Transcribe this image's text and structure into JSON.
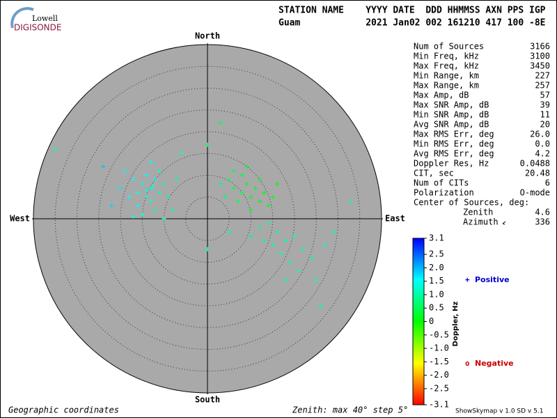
{
  "logo": {
    "top": "Lowell",
    "bottom": "DIGISONDE"
  },
  "header": {
    "row1": "STATION NAME    YYYY DATE  DDD HHMMSS AXN PPS IGP",
    "row2": "Guam            2021 Jan02 002 161210 417 100 -8E"
  },
  "stats": {
    "rows": [
      [
        "Num of Sources",
        3166
      ],
      [
        "Min Freq, kHz",
        3100
      ],
      [
        "Max Freq, kHz",
        3450
      ],
      [
        "Min Range, km",
        227
      ],
      [
        "Max Range, km",
        257
      ],
      [
        "Max Amp, dB",
        57
      ],
      [
        "Max SNR Amp, dB",
        39
      ],
      [
        "Min SNR Amp, dB",
        11
      ],
      [
        "Avg SNR Amp, dB",
        20
      ],
      [
        "Max RMS Err, deg",
        "26.0"
      ],
      [
        "Min RMS Err, deg",
        "0.0"
      ],
      [
        "Avg RMS Err, deg",
        4.2
      ],
      [
        "Doppler Res, Hz",
        0.0488
      ],
      [
        "CIT, sec",
        20.48
      ],
      [
        "Num of CITs",
        6
      ],
      [
        "Polarization",
        "O-mode"
      ]
    ],
    "center_title": "Center of Sources, deg:",
    "center_rows": [
      [
        "Zenith",
        4.6
      ],
      [
        "Azimuth",
        336
      ]
    ]
  },
  "chart_data": {
    "type": "skymap",
    "directions": {
      "north": "North",
      "south": "South",
      "east": "East",
      "west": "West"
    },
    "rlim": [
      0,
      40
    ],
    "rticks": [
      5,
      10,
      15,
      20,
      25,
      30,
      35,
      40
    ],
    "x": [
      -13,
      -15,
      -11,
      -14,
      -12,
      -16,
      -10,
      -17,
      -13,
      -18,
      -9,
      -14,
      -12,
      -16,
      -20,
      -11,
      -8,
      -19,
      -15,
      -22,
      -7,
      -13,
      -24,
      -10,
      -17,
      -6,
      -14,
      -12.5,
      8,
      10,
      6,
      9,
      12,
      7,
      11,
      5,
      13,
      8,
      14,
      10,
      4,
      6,
      12,
      15,
      9,
      3,
      16,
      14,
      16,
      12,
      18,
      15,
      20,
      17,
      22,
      19,
      24,
      13,
      21,
      25,
      18,
      10,
      27,
      5,
      0,
      3,
      0,
      -35,
      33,
      29,
      26
    ],
    "y": [
      7,
      8,
      6,
      5,
      9,
      6,
      8,
      9,
      4,
      5,
      5,
      10,
      2,
      3,
      7,
      11,
      2,
      11,
      1,
      3,
      9,
      13,
      12,
      0,
      0.5,
      15,
      6.5,
      7.5,
      6,
      5,
      7,
      8,
      4,
      4,
      7,
      9,
      6,
      10,
      3,
      2,
      5,
      11,
      9,
      5,
      12,
      8,
      8,
      -1,
      -3,
      -2,
      -5,
      -6,
      -4,
      -8,
      -7,
      -10,
      -9,
      -5,
      -12,
      -14,
      -14,
      -4,
      -6,
      -3,
      -7,
      22,
      17,
      16,
      4,
      -3,
      -20
    ],
    "doppler": [
      1.3,
      1.4,
      1.2,
      1.3,
      1.5,
      1.4,
      1.1,
      1.6,
      1.2,
      1.5,
      1.0,
      1.5,
      1.2,
      1.4,
      1.7,
      1.3,
      1.1,
      1.6,
      1.3,
      1.8,
      1.0,
      1.4,
      1.9,
      1.2,
      1.5,
      1.2,
      1.3,
      1.3,
      0.3,
      0.2,
      0.4,
      0.3,
      0.1,
      0.5,
      0.2,
      0.6,
      0.0,
      0.4,
      0.2,
      0.3,
      0.7,
      0.5,
      0.1,
      -0.1,
      0.3,
      0.8,
      0.0,
      0.9,
      1.0,
      0.8,
      1.1,
      1.0,
      1.2,
      1.1,
      1.2,
      1.0,
      1.1,
      0.9,
      1.2,
      1.0,
      0.9,
      0.8,
      1.3,
      0.9,
      1.0,
      0.5,
      0.6,
      1.2,
      1.1,
      1.2,
      1.0
    ],
    "colorbar": {
      "label": "Doppler, Hz",
      "lim": [
        -3.1,
        3.1
      ],
      "ticks": [
        3.1,
        2.5,
        {
          "value": 2,
          "label": "2.0"
        },
        1.5,
        {
          "value": 1,
          "label": "1.0"
        },
        0.5,
        0,
        -0.5,
        {
          "value": -1,
          "label": "-1.0"
        },
        -1.5,
        {
          "value": -2,
          "label": "-2.0"
        },
        -2.5,
        -3.1
      ]
    },
    "legend": {
      "positive": {
        "symbol": "+",
        "name": "Positive",
        "color": "#0000cc"
      },
      "negative": {
        "symbol": "o",
        "name": "Negative",
        "color": "#cc0000"
      }
    },
    "plot_color": "#a9a9a9"
  },
  "footer": {
    "left": "Geographic coordinates",
    "middle": "Zenith: max 40°  step 5°",
    "right": "ShowSkymap v 1.0   SD v 5.1"
  }
}
